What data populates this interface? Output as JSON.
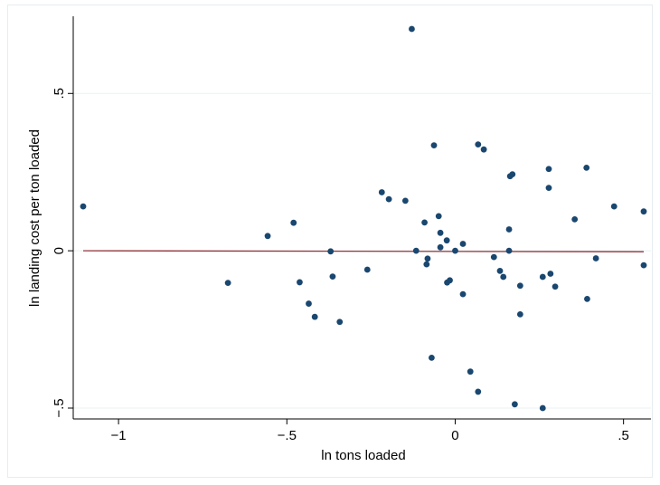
{
  "chart_data": {
    "type": "scatter",
    "title": "",
    "xlabel": "ln tons loaded",
    "ylabel": "ln landing cost per ton loaded",
    "xlim": [
      -1.105,
      0.56
    ],
    "ylim": [
      -0.5,
      0.705
    ],
    "x_ticks": [
      -1,
      -0.5,
      0,
      0.5
    ],
    "x_tick_labels": [
      "−1",
      "−.5",
      "0",
      ".5"
    ],
    "y_ticks": [
      -0.5,
      0,
      0.5
    ],
    "y_tick_labels": [
      "−.5",
      "0",
      ".5"
    ],
    "grid": true,
    "legend": "none",
    "colors": {
      "points": "#1a476f",
      "fit_line": "#90353b",
      "grid": "#eaf2f3"
    },
    "series": [
      {
        "values": [
          [
            -1.105,
            0.141
          ],
          [
            -0.675,
            -0.102
          ],
          [
            -0.557,
            0.047
          ],
          [
            -0.48,
            0.089
          ],
          [
            -0.462,
            -0.1
          ],
          [
            -0.435,
            -0.168
          ],
          [
            -0.417,
            -0.21
          ],
          [
            -0.37,
            -0.002
          ],
          [
            -0.364,
            -0.082
          ],
          [
            -0.343,
            -0.226
          ],
          [
            -0.261,
            -0.06
          ],
          [
            -0.218,
            0.186
          ],
          [
            -0.197,
            0.164
          ],
          [
            -0.148,
            0.159
          ],
          [
            -0.129,
            0.705
          ],
          [
            -0.116,
            0.0
          ],
          [
            -0.091,
            0.09
          ],
          [
            -0.085,
            -0.043
          ],
          [
            -0.082,
            -0.025
          ],
          [
            -0.07,
            -0.34
          ],
          [
            -0.063,
            0.335
          ],
          [
            -0.049,
            0.11
          ],
          [
            -0.044,
            0.057
          ],
          [
            -0.044,
            0.011
          ],
          [
            -0.025,
            0.033
          ],
          [
            -0.024,
            -0.101
          ],
          [
            -0.016,
            -0.094
          ],
          [
            0.0,
            0.0
          ],
          [
            0.023,
            0.022
          ],
          [
            0.023,
            -0.138
          ],
          [
            0.045,
            -0.384
          ],
          [
            0.068,
            0.338
          ],
          [
            0.068,
            -0.448
          ],
          [
            0.085,
            0.322
          ],
          [
            0.115,
            -0.02
          ],
          [
            0.133,
            -0.064
          ],
          [
            0.143,
            -0.083
          ],
          [
            0.16,
            0.0
          ],
          [
            0.16,
            0.068
          ],
          [
            0.163,
            0.237
          ],
          [
            0.17,
            0.243
          ],
          [
            0.177,
            -0.488
          ],
          [
            0.193,
            -0.111
          ],
          [
            0.193,
            -0.202
          ],
          [
            0.26,
            -0.083
          ],
          [
            0.26,
            -0.5
          ],
          [
            0.278,
            0.26
          ],
          [
            0.278,
            0.2
          ],
          [
            0.283,
            -0.073
          ],
          [
            0.297,
            -0.114
          ],
          [
            0.355,
            0.1
          ],
          [
            0.39,
            0.264
          ],
          [
            0.392,
            -0.153
          ],
          [
            0.418,
            -0.024
          ],
          [
            0.472,
            0.141
          ],
          [
            0.56,
            0.125
          ],
          [
            0.56,
            -0.046
          ]
        ]
      }
    ],
    "fit_line": {
      "x": [
        -1.105,
        0.56
      ],
      "y": [
        0.0,
        -0.003
      ]
    }
  }
}
